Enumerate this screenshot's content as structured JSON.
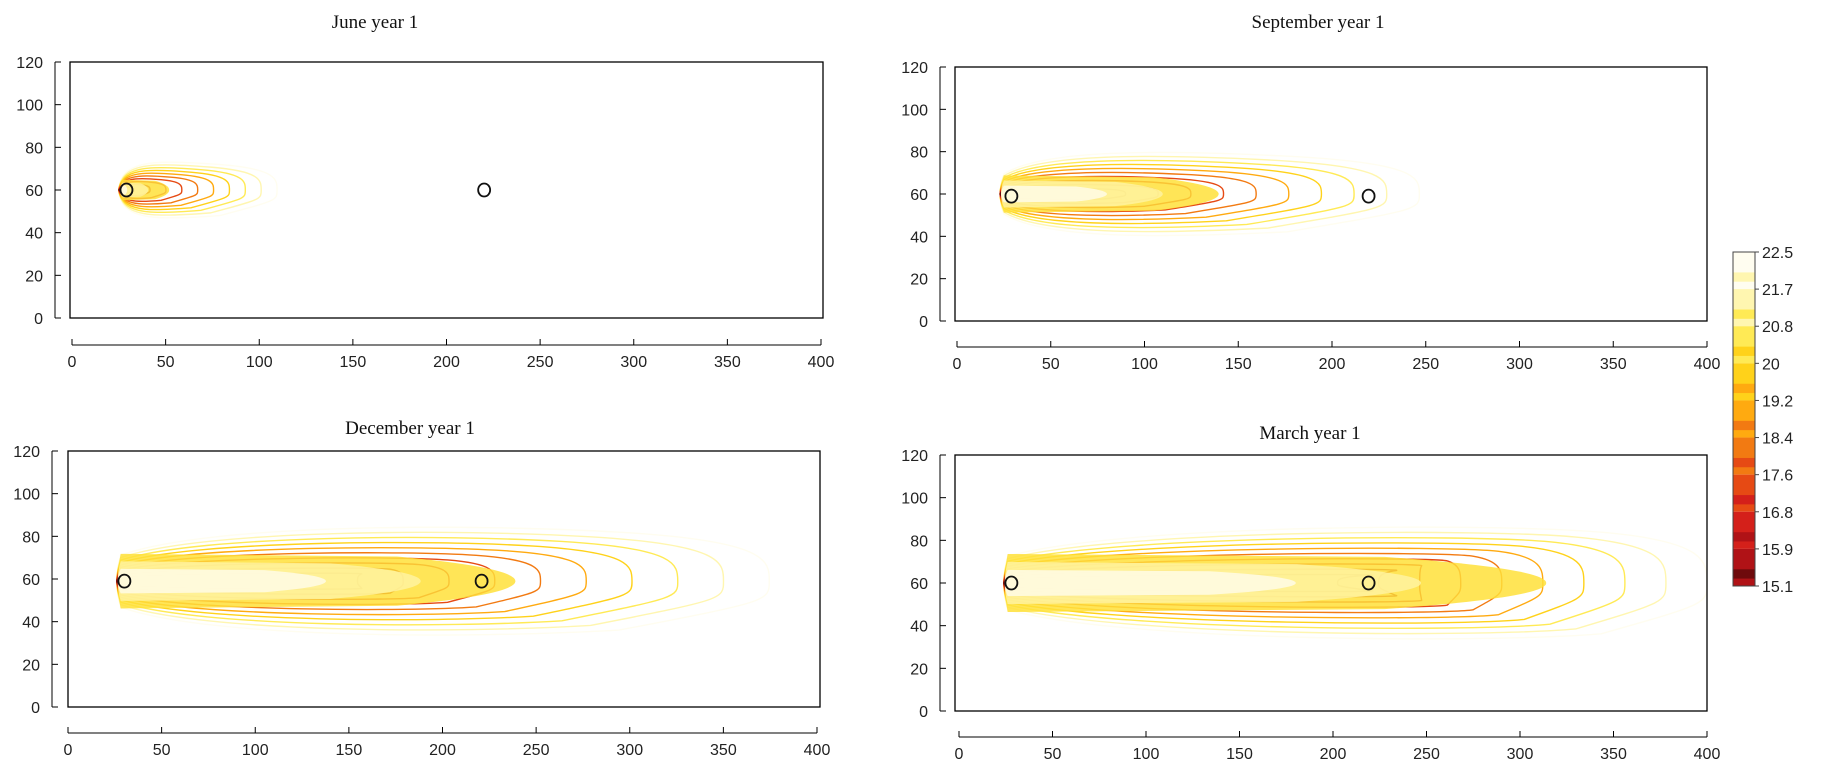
{
  "chart_data": {
    "type": "contour",
    "colorbar": {
      "ticks": [
        "22.5",
        "21.7",
        "20.8",
        "20",
        "19.2",
        "18.4",
        "17.6",
        "16.8",
        "15.9",
        "15.1"
      ],
      "levels": [
        22.5,
        21.7,
        20.8,
        20,
        19.2,
        18.4,
        17.6,
        16.8,
        15.9,
        15.1
      ],
      "colors": [
        "#FFFDF0",
        "#FFF6B0",
        "#FFEA55",
        "#FFD21A",
        "#FFAA10",
        "#F27A12",
        "#E64A14",
        "#D4201A",
        "#B01216",
        "#6E0A0C"
      ]
    },
    "panels": [
      {
        "title": "June year 1",
        "xlim": [
          0,
          400
        ],
        "ylim": [
          0,
          120
        ],
        "xticks": [
          "0",
          "50",
          "100",
          "150",
          "200",
          "250",
          "300",
          "350",
          "400"
        ],
        "yticks": [
          "0",
          "20",
          "40",
          "60",
          "80",
          "100",
          "120"
        ],
        "markers": [
          {
            "x": 30,
            "y": 60
          },
          {
            "x": 220,
            "y": 60
          }
        ],
        "plume": {
          "center_y": 60,
          "source_x": 30,
          "outer_x_extent": 110,
          "outer_half_width": 14,
          "core_x_extent": 62,
          "core_half_width": 6,
          "ridge_x": 30
        }
      },
      {
        "title": "September year 1",
        "xlim": [
          0,
          400
        ],
        "ylim": [
          0,
          120
        ],
        "xticks": [
          "0",
          "50",
          "100",
          "150",
          "200",
          "250",
          "300",
          "350",
          "400"
        ],
        "yticks": [
          "0",
          "20",
          "40",
          "60",
          "80",
          "100",
          "120"
        ],
        "markers": [
          {
            "x": 30,
            "y": 59
          },
          {
            "x": 220,
            "y": 59
          }
        ],
        "plume": {
          "center_y": 60,
          "source_x": 28,
          "outer_x_extent": 247,
          "outer_half_width": 21,
          "core_x_extent": 165,
          "core_half_width": 11,
          "ridge_x": 60
        }
      },
      {
        "title": "December year 1",
        "xlim": [
          0,
          400
        ],
        "ylim": [
          0,
          120
        ],
        "xticks": [
          "0",
          "50",
          "100",
          "150",
          "200",
          "250",
          "300",
          "350",
          "400"
        ],
        "yticks": [
          "0",
          "20",
          "40",
          "60",
          "80",
          "100",
          "120"
        ],
        "markers": [
          {
            "x": 30,
            "y": 59
          },
          {
            "x": 220,
            "y": 59
          }
        ],
        "plume": {
          "center_y": 59,
          "source_x": 30,
          "outer_x_extent": 373,
          "outer_half_width": 27,
          "core_x_extent": 280,
          "core_half_width": 16,
          "ridge_x": 160
        }
      },
      {
        "title": "March year 1",
        "xlim": [
          0,
          400
        ],
        "ylim": [
          0,
          120
        ],
        "xticks": [
          "0",
          "50",
          "100",
          "150",
          "200",
          "250",
          "300",
          "350",
          "400"
        ],
        "yticks": [
          "0",
          "20",
          "40",
          "60",
          "80",
          "100",
          "120"
        ],
        "markers": [
          {
            "x": 30,
            "y": 60
          },
          {
            "x": 220,
            "y": 60
          }
        ],
        "plume": {
          "center_y": 60,
          "source_x": 30,
          "outer_x_extent": 400,
          "outer_half_width": 28,
          "core_x_extent": 370,
          "core_half_width": 17,
          "ridge_x": 250
        }
      }
    ]
  }
}
